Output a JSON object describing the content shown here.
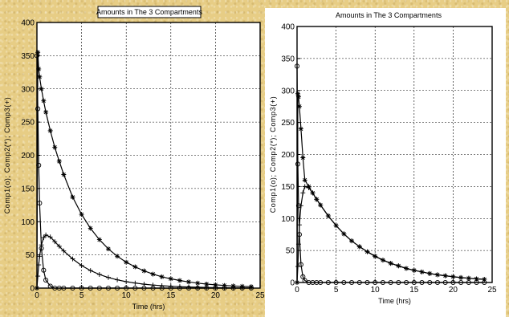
{
  "chart_data": [
    {
      "type": "line",
      "title": "Amounts in The 3 Compartments",
      "xlabel": "Time (hrs)",
      "ylabel": "Comp1(o); Comp2(*); Comp3(+)",
      "xlim": [
        0,
        25
      ],
      "ylim": [
        0,
        400
      ],
      "xticks": [
        0,
        5,
        10,
        15,
        20,
        25
      ],
      "yticks": [
        0,
        50,
        100,
        150,
        200,
        250,
        300,
        350,
        400
      ],
      "grid": true,
      "x": [
        0,
        0.1,
        0.2,
        0.3,
        0.5,
        0.75,
        1,
        1.5,
        2,
        2.5,
        3,
        4,
        5,
        6,
        7,
        8,
        9,
        10,
        11,
        12,
        13,
        14,
        15,
        16,
        17,
        18,
        19,
        20,
        21,
        22,
        23,
        24
      ],
      "series": [
        {
          "name": "Comp1",
          "marker": "o",
          "values": [
            350,
            270,
            185,
            128,
            60,
            27,
            12,
            3,
            0,
            0,
            0,
            0,
            0,
            0,
            0,
            0,
            0,
            0,
            0,
            0,
            0,
            0,
            0,
            0,
            0,
            0,
            0,
            0,
            0,
            0,
            0,
            0
          ]
        },
        {
          "name": "Comp2",
          "marker": "*",
          "values": [
            0,
            355,
            330,
            318,
            300,
            282,
            265,
            237,
            212,
            191,
            171,
            137,
            111,
            90,
            73,
            59,
            48,
            39,
            32,
            26,
            21,
            17,
            14,
            11.5,
            9.3,
            7.5,
            6.1,
            5,
            4,
            3.3,
            2.7,
            2.2
          ]
        },
        {
          "name": "Comp3",
          "marker": "+",
          "values": [
            0,
            18,
            35,
            48,
            65,
            76,
            80,
            77,
            70,
            63,
            56,
            44,
            34,
            26.5,
            20.6,
            16,
            12.5,
            9.7,
            7.6,
            5.9,
            4.6,
            3.6,
            2.8,
            2.2,
            1.7,
            1.3,
            1,
            0.8,
            0.6,
            0.5,
            0.4,
            0.3
          ]
        }
      ]
    },
    {
      "type": "line",
      "title": "Amounts in The 3 Compartments",
      "xlabel": "Time (hrs)",
      "ylabel": "Comp1(o); Comp2(*); Comp3(+)",
      "xlim": [
        0,
        25
      ],
      "ylim": [
        0,
        400
      ],
      "xticks": [
        0,
        5,
        10,
        15,
        20,
        25
      ],
      "yticks": [
        0,
        50,
        100,
        150,
        200,
        250,
        300,
        350,
        400
      ],
      "grid": true,
      "x": [
        0,
        0.1,
        0.2,
        0.3,
        0.5,
        0.75,
        1,
        1.5,
        2,
        2.5,
        3,
        4,
        5,
        6,
        7,
        8,
        9,
        10,
        11,
        12,
        13,
        14,
        15,
        16,
        17,
        18,
        19,
        20,
        21,
        22,
        23,
        24
      ],
      "series": [
        {
          "name": "Comp1",
          "marker": "o",
          "values": [
            338,
            185,
            120,
            75,
            28,
            9,
            3,
            0,
            0,
            0,
            0,
            0,
            0,
            0,
            0,
            0,
            0,
            0,
            0,
            0,
            0,
            0,
            0,
            0,
            0,
            0,
            0,
            0,
            0,
            0,
            0,
            0
          ]
        },
        {
          "name": "Comp2",
          "marker": "*",
          "values": [
            0,
            295,
            290,
            275,
            240,
            195,
            160,
            150,
            140,
            130,
            121,
            104,
            89,
            76,
            65,
            56,
            48,
            41,
            35,
            30,
            26,
            22,
            19,
            16.5,
            14,
            12,
            10.5,
            9,
            7.7,
            6.6,
            5.7,
            4.9
          ]
        },
        {
          "name": "Comp3",
          "marker": "+",
          "values": [
            0,
            25,
            60,
            90,
            120,
            140,
            150,
            148,
            140,
            130,
            121,
            104,
            89,
            76,
            65,
            56,
            48,
            41,
            35,
            30,
            26,
            22,
            19,
            16.5,
            14,
            12,
            10.5,
            9,
            7.7,
            6.6,
            5.7,
            4.9
          ]
        }
      ]
    }
  ]
}
